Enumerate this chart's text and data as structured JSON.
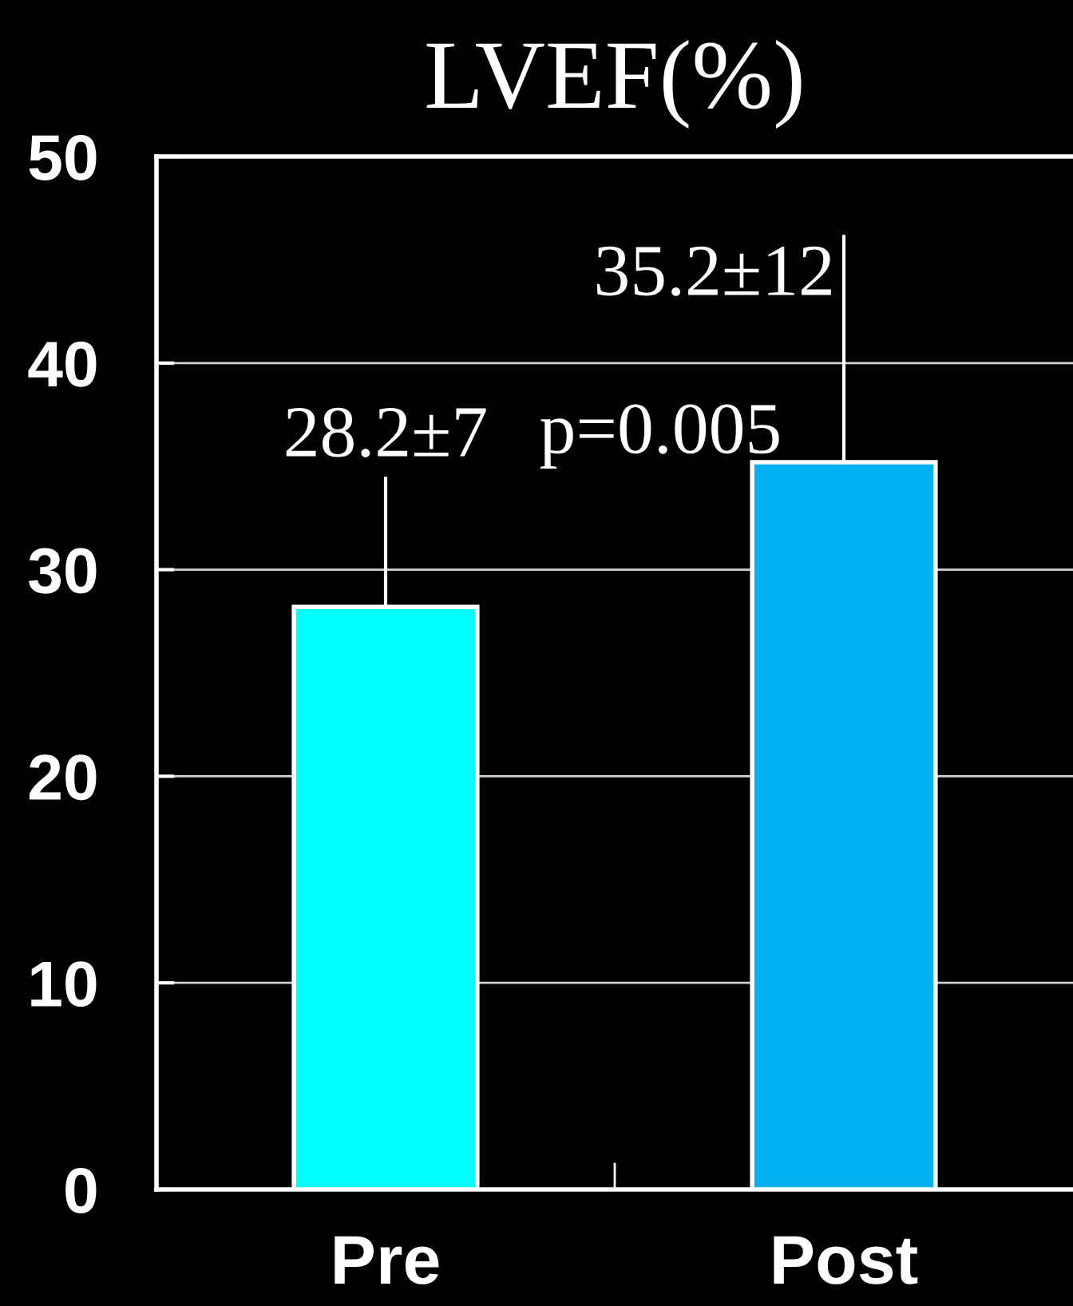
{
  "chart_data": {
    "type": "bar",
    "title": "LVEF(%)",
    "categories": [
      "Pre",
      "Post"
    ],
    "values": [
      28.2,
      35.2
    ],
    "colors": [
      "#00ffff",
      "#00b0f0"
    ],
    "errors": [
      [
        28.2,
        34.5
      ],
      [
        35.2,
        46.2
      ]
    ],
    "value_labels": [
      "28.2±7",
      "35.2±12"
    ],
    "annotations": [
      "p=0.005"
    ],
    "ylim": [
      0,
      50
    ],
    "yticks": [
      0,
      10,
      20,
      30,
      40,
      50
    ],
    "grid": "y"
  }
}
